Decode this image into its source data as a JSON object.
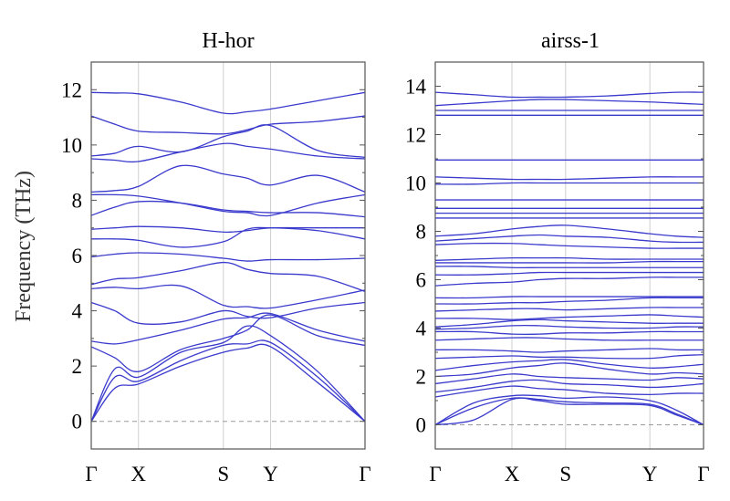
{
  "figure": {
    "ylabel": "Frequency (THz)"
  },
  "colors": {
    "band": "#3a3acd",
    "grid": "#cfcfcf",
    "zero_line": "#9a9a9a"
  },
  "chart_data": [
    {
      "type": "line",
      "title": "H-hor",
      "ylabel": "Frequency (THz)",
      "ylim": [
        -1,
        13
      ],
      "yticks": [
        0,
        2,
        4,
        6,
        8,
        10,
        12
      ],
      "yticklabels": [
        "0",
        "2",
        "4",
        "6",
        "8",
        "10",
        "12"
      ],
      "high_symmetry_points": [
        "Γ",
        "X",
        "S",
        "Y",
        "Γ"
      ],
      "x_positions": [
        0,
        1,
        2.8,
        3.8,
        5.8
      ],
      "grid": "vertical at high-symmetry points",
      "zero_reference_line": true,
      "x": [
        0,
        0.5,
        1,
        1.9,
        2.8,
        3.3,
        3.8,
        4.8,
        5.8
      ],
      "series": [
        {
          "values": [
            0,
            1.2,
            1.35,
            2.0,
            2.5,
            2.65,
            2.7,
            1.4,
            0
          ]
        },
        {
          "values": [
            0,
            1.6,
            1.45,
            2.2,
            2.75,
            2.8,
            2.85,
            1.6,
            0
          ]
        },
        {
          "values": [
            0,
            1.9,
            1.6,
            2.5,
            2.85,
            3.45,
            3.1,
            1.8,
            0
          ]
        },
        {
          "values": [
            2.7,
            2.3,
            1.8,
            2.6,
            3.0,
            3.3,
            3.85,
            3.1,
            2.75
          ]
        },
        {
          "values": [
            2.9,
            2.8,
            2.95,
            3.3,
            3.7,
            3.75,
            3.9,
            3.3,
            2.9
          ]
        },
        {
          "values": [
            4.3,
            4.0,
            3.55,
            3.6,
            4.0,
            3.8,
            3.75,
            4.1,
            4.3
          ]
        },
        {
          "values": [
            4.8,
            4.85,
            4.8,
            4.9,
            4.2,
            4.15,
            4.1,
            4.4,
            4.75
          ]
        },
        {
          "values": [
            4.95,
            5.15,
            5.2,
            5.45,
            5.75,
            5.5,
            5.35,
            5.25,
            4.7
          ]
        },
        {
          "values": [
            5.95,
            6.05,
            6.1,
            6.05,
            5.9,
            5.8,
            5.85,
            5.85,
            5.9
          ]
        },
        {
          "values": [
            6.6,
            6.6,
            6.55,
            6.3,
            6.5,
            6.95,
            7.0,
            6.9,
            6.6
          ]
        },
        {
          "values": [
            6.95,
            7.0,
            7.05,
            7.0,
            6.85,
            6.9,
            7.0,
            7.0,
            7.0
          ]
        },
        {
          "values": [
            7.45,
            7.75,
            7.95,
            7.9,
            7.65,
            7.6,
            7.55,
            7.55,
            7.4
          ]
        },
        {
          "values": [
            8.2,
            8.2,
            8.15,
            7.9,
            7.6,
            7.55,
            7.45,
            7.9,
            8.2
          ]
        },
        {
          "values": [
            8.3,
            8.35,
            8.5,
            9.25,
            8.95,
            8.8,
            8.55,
            8.9,
            8.3
          ]
        },
        {
          "values": [
            9.5,
            9.45,
            9.4,
            9.75,
            10.05,
            9.95,
            9.85,
            9.6,
            9.5
          ]
        },
        {
          "values": [
            9.6,
            9.7,
            9.95,
            9.75,
            10.3,
            10.5,
            10.7,
            9.8,
            9.55
          ]
        },
        {
          "values": [
            11.05,
            10.75,
            10.5,
            10.45,
            10.4,
            10.55,
            10.75,
            10.85,
            11.05
          ]
        },
        {
          "values": [
            11.9,
            11.88,
            11.85,
            11.55,
            11.15,
            11.2,
            11.3,
            11.6,
            11.9
          ]
        }
      ]
    },
    {
      "type": "line",
      "title": "airss-1",
      "ylabel": "",
      "ylim": [
        -1,
        15
      ],
      "yticks": [
        0,
        2,
        4,
        6,
        8,
        10,
        12,
        14
      ],
      "yticklabels": [
        "0",
        "2",
        "4",
        "6",
        "8",
        "10",
        "12",
        "14"
      ],
      "high_symmetry_points": [
        "Γ",
        "X",
        "S",
        "Y",
        "Γ"
      ],
      "x_positions": [
        0,
        1,
        1.7,
        2.8,
        3.5
      ],
      "grid": "vertical at high-symmetry points",
      "zero_reference_line": true,
      "x": [
        0,
        0.5,
        1,
        1.35,
        1.7,
        2.25,
        2.8,
        3.15,
        3.5
      ],
      "series": [
        {
          "values": [
            0,
            0.2,
            1.05,
            1.0,
            0.85,
            0.85,
            0.8,
            0.4,
            0
          ]
        },
        {
          "values": [
            0,
            0.7,
            1.1,
            1.05,
            0.95,
            0.9,
            0.85,
            0.45,
            0
          ]
        },
        {
          "values": [
            0,
            0.9,
            1.2,
            1.2,
            1.1,
            1.15,
            1.0,
            0.6,
            0
          ]
        },
        {
          "values": [
            1.15,
            1.4,
            1.6,
            1.5,
            1.45,
            1.3,
            1.25,
            1.3,
            1.3
          ]
        },
        {
          "values": [
            1.35,
            1.55,
            1.8,
            1.85,
            1.7,
            1.65,
            1.55,
            1.6,
            1.7
          ]
        },
        {
          "values": [
            1.7,
            1.9,
            2.1,
            2.0,
            1.95,
            1.9,
            1.85,
            1.95,
            1.9
          ]
        },
        {
          "values": [
            2.0,
            2.1,
            2.35,
            2.45,
            2.55,
            2.3,
            2.1,
            2.15,
            2.1
          ]
        },
        {
          "values": [
            2.25,
            2.45,
            2.6,
            2.65,
            2.7,
            2.5,
            2.35,
            2.4,
            2.5
          ]
        },
        {
          "values": [
            2.75,
            2.8,
            2.85,
            2.8,
            2.8,
            2.75,
            2.75,
            2.85,
            2.9
          ]
        },
        {
          "values": [
            3.1,
            3.1,
            3.05,
            3.0,
            3.05,
            3.1,
            3.15,
            3.1,
            3.1
          ]
        },
        {
          "values": [
            3.5,
            3.55,
            3.6,
            3.6,
            3.55,
            3.5,
            3.5,
            3.5,
            3.5
          ]
        },
        {
          "values": [
            3.85,
            3.85,
            3.75,
            3.75,
            3.8,
            3.8,
            3.85,
            3.85,
            3.85
          ]
        },
        {
          "values": [
            3.95,
            4.0,
            4.1,
            4.1,
            4.05,
            4.0,
            4.0,
            4.05,
            4.05
          ]
        },
        {
          "values": [
            4.05,
            4.15,
            4.3,
            4.35,
            4.3,
            4.25,
            4.2,
            4.2,
            4.2
          ]
        },
        {
          "values": [
            4.4,
            4.4,
            4.35,
            4.4,
            4.45,
            4.5,
            4.55,
            4.5,
            4.45
          ]
        },
        {
          "values": [
            4.7,
            4.75,
            4.8,
            4.8,
            4.75,
            4.8,
            4.85,
            4.85,
            4.85
          ]
        },
        {
          "values": [
            5.0,
            5.0,
            5.05,
            5.05,
            5.1,
            5.15,
            5.25,
            5.25,
            5.25
          ]
        },
        {
          "values": [
            5.25,
            5.25,
            5.3,
            5.3,
            5.3,
            5.3,
            5.3,
            5.3,
            5.3
          ]
        },
        {
          "values": [
            5.75,
            5.85,
            5.9,
            6.0,
            6.05,
            6.05,
            6.1,
            6.1,
            6.1
          ]
        },
        {
          "values": [
            6.2,
            6.2,
            6.25,
            6.3,
            6.3,
            6.3,
            6.3,
            6.3,
            6.3
          ]
        },
        {
          "values": [
            6.55,
            6.55,
            6.5,
            6.5,
            6.5,
            6.5,
            6.5,
            6.5,
            6.5
          ]
        },
        {
          "values": [
            6.7,
            6.7,
            6.7,
            6.7,
            6.7,
            6.7,
            6.75,
            6.75,
            6.75
          ]
        },
        {
          "values": [
            6.8,
            6.85,
            6.9,
            6.9,
            6.9,
            6.85,
            6.85,
            6.85,
            6.85
          ]
        },
        {
          "values": [
            7.45,
            7.5,
            7.5,
            7.45,
            7.4,
            7.35,
            7.3,
            7.3,
            7.3
          ]
        },
        {
          "values": [
            7.6,
            7.7,
            7.8,
            7.85,
            7.8,
            7.75,
            7.6,
            7.55,
            7.55
          ]
        },
        {
          "values": [
            7.8,
            7.9,
            8.1,
            8.2,
            8.25,
            8.1,
            7.9,
            7.8,
            7.75
          ]
        },
        {
          "values": [
            8.55,
            8.55,
            8.55,
            8.55,
            8.55,
            8.55,
            8.55,
            8.55,
            8.55
          ]
        },
        {
          "values": [
            8.75,
            8.75,
            8.75,
            8.75,
            8.75,
            8.75,
            8.75,
            8.75,
            8.75
          ]
        },
        {
          "values": [
            8.95,
            8.95,
            8.95,
            8.95,
            8.95,
            8.95,
            8.95,
            8.95,
            8.95
          ]
        },
        {
          "values": [
            9.3,
            9.3,
            9.3,
            9.3,
            9.3,
            9.3,
            9.3,
            9.3,
            9.3
          ]
        },
        {
          "values": [
            9.95,
            9.95,
            10.0,
            10.0,
            10.0,
            10.0,
            10.0,
            10.0,
            10.0
          ]
        },
        {
          "values": [
            10.25,
            10.2,
            10.15,
            10.15,
            10.15,
            10.2,
            10.25,
            10.25,
            10.25
          ]
        },
        {
          "values": [
            10.95,
            10.95,
            10.95,
            10.95,
            10.95,
            10.95,
            10.95,
            10.95,
            10.95
          ]
        },
        {
          "values": [
            12.8,
            12.8,
            12.8,
            12.8,
            12.8,
            12.8,
            12.8,
            12.8,
            12.8
          ]
        },
        {
          "values": [
            13.0,
            13.0,
            13.0,
            13.0,
            13.0,
            13.0,
            13.0,
            13.0,
            13.0
          ]
        },
        {
          "values": [
            13.2,
            13.3,
            13.4,
            13.45,
            13.45,
            13.4,
            13.35,
            13.3,
            13.25
          ]
        },
        {
          "values": [
            13.75,
            13.65,
            13.55,
            13.55,
            13.55,
            13.6,
            13.7,
            13.75,
            13.75
          ]
        }
      ]
    }
  ]
}
